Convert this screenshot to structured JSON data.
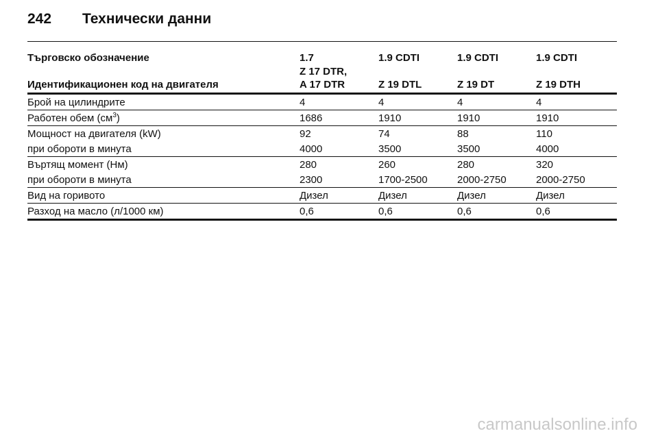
{
  "header": {
    "page": "242",
    "title": "Технически данни"
  },
  "table": {
    "head": [
      [
        "Търговско обозначение",
        "1.7",
        "1.9 CDTI",
        "1.9 CDTI",
        "1.9 CDTI"
      ],
      [
        "Идентификационен код на двигателя",
        "Z 17 DTR,\nA 17 DTR",
        "Z 19 DTL",
        "Z 19 DT",
        "Z 19 DTH"
      ]
    ],
    "groups": [
      [
        [
          "Брой на цилиндрите",
          "4",
          "4",
          "4",
          "4"
        ]
      ],
      [
        [
          [
            "Работен обем (см",
            "3",
            ")"
          ],
          "1686",
          "1910",
          "1910",
          "1910"
        ]
      ],
      [
        [
          "Мощност на двигателя (kW)",
          "92",
          "74",
          "88",
          "110"
        ],
        [
          "при обороти в минута",
          "4000",
          "3500",
          "3500",
          "4000"
        ]
      ],
      [
        [
          "Въртящ момент (Нм)",
          "280",
          "260",
          "280",
          "320"
        ],
        [
          "при обороти в минута",
          "2300",
          "1700-2500",
          "2000-2750",
          "2000-2750"
        ]
      ],
      [
        [
          "Вид на горивото",
          "Дизел",
          "Дизел",
          "Дизел",
          "Дизел"
        ]
      ],
      [
        [
          "Разход на масло (л/1000 км)",
          "0,6",
          "0,6",
          "0,6",
          "0,6"
        ]
      ]
    ]
  },
  "watermark": "carmanualsonline.info"
}
